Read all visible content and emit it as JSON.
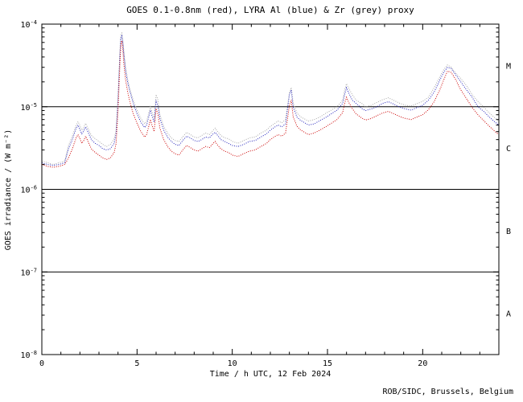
{
  "chart_data": {
    "type": "line",
    "title": "GOES 0.1-0.8nm (red), LYRA Al (blue) & Zr (grey) proxy",
    "xlabel": "Time / h UTC, 12 Feb 2024",
    "ylabel": "GOES irradiance / (W m⁻²)",
    "credit": "ROB/SIDC, Brussels, Belgium",
    "xlim": [
      0,
      24
    ],
    "ylim": [
      1e-08,
      0.0001
    ],
    "ylog": true,
    "grid": false,
    "legend_position": "none",
    "x_ticks": [
      0,
      5,
      10,
      15,
      20
    ],
    "x_minor_step": 1,
    "y_tick_exponents": [
      -8,
      -7,
      -6,
      -5,
      -4
    ],
    "class_lines": [
      1e-05,
      1e-06,
      1e-07
    ],
    "class_bands": [
      {
        "label": "M",
        "value": 3.16e-05
      },
      {
        "label": "C",
        "value": 3.16e-06
      },
      {
        "label": "B",
        "value": 3.16e-07
      },
      {
        "label": "A",
        "value": 3.16e-08
      }
    ],
    "x": [
      0,
      0.3,
      0.6,
      0.9,
      1.2,
      1.4,
      1.6,
      1.8,
      1.9,
      2.0,
      2.1,
      2.2,
      2.3,
      2.4,
      2.6,
      2.8,
      3.0,
      3.2,
      3.4,
      3.6,
      3.8,
      3.9,
      4.0,
      4.1,
      4.15,
      4.2,
      4.25,
      4.3,
      4.4,
      4.5,
      4.6,
      4.8,
      5.0,
      5.2,
      5.4,
      5.5,
      5.6,
      5.7,
      5.8,
      5.9,
      6.0,
      6.1,
      6.2,
      6.4,
      6.6,
      6.8,
      7.0,
      7.2,
      7.4,
      7.6,
      7.8,
      8.0,
      8.2,
      8.4,
      8.6,
      8.8,
      9.0,
      9.1,
      9.2,
      9.4,
      9.6,
      9.8,
      10.0,
      10.3,
      10.6,
      10.9,
      11.2,
      11.5,
      11.8,
      12.0,
      12.2,
      12.4,
      12.6,
      12.8,
      13.0,
      13.1,
      13.2,
      13.4,
      13.6,
      13.8,
      14.0,
      14.3,
      14.6,
      14.9,
      15.2,
      15.5,
      15.8,
      15.9,
      16.0,
      16.1,
      16.3,
      16.5,
      16.8,
      17.0,
      17.3,
      17.6,
      17.9,
      18.2,
      18.5,
      18.8,
      19.1,
      19.4,
      19.7,
      20.0,
      20.3,
      20.6,
      20.9,
      21.1,
      21.3,
      21.5,
      21.7,
      22.0,
      22.3,
      22.6,
      22.9,
      23.2,
      23.5,
      23.8,
      24.0
    ],
    "series": [
      {
        "id": "lyra-zr",
        "name": "LYRA Zr proxy",
        "color": "#a8a8a8",
        "values": [
          2.2e-06,
          2.1e-06,
          2e-06,
          2.1e-06,
          2.2e-06,
          3.4e-06,
          4.4e-06,
          6e-06,
          6.6e-06,
          5.9e-06,
          5.2e-06,
          5.6e-06,
          6.3e-06,
          5.6e-06,
          4.5e-06,
          4.1e-06,
          3.8e-06,
          3.5e-06,
          3.3e-06,
          3.5e-06,
          4.1e-06,
          5.2e-06,
          1.3e-05,
          4.6e-05,
          7.5e-05,
          7.8e-05,
          6.5e-05,
          4.9e-05,
          3e-05,
          2.2e-05,
          1.7e-05,
          1.2e-05,
          9.1e-06,
          7.2e-06,
          6.2e-06,
          6.7e-06,
          8.1e-06,
          1e-05,
          8.4e-06,
          7.2e-06,
          1.4e-05,
          1.2e-05,
          8e-06,
          5.8e-06,
          4.8e-06,
          4.2e-06,
          3.9e-06,
          3.8e-06,
          4.3e-06,
          4.9e-06,
          4.6e-06,
          4.3e-06,
          4.2e-06,
          4.5e-06,
          4.8e-06,
          4.6e-06,
          5.2e-06,
          5.5e-06,
          5.1e-06,
          4.5e-06,
          4.2e-06,
          4.1e-06,
          3.8e-06,
          3.6e-06,
          3.9e-06,
          4.2e-06,
          4.3e-06,
          4.8e-06,
          5.2e-06,
          5.8e-06,
          6.2e-06,
          6.7e-06,
          6.4e-06,
          7e-06,
          1.5e-05,
          1.7e-05,
          1.1e-05,
          8.4e-06,
          7.5e-06,
          7.1e-06,
          6.7e-06,
          7e-06,
          7.5e-06,
          8.3e-06,
          9.1e-06,
          1e-05,
          1.2e-05,
          1.6e-05,
          1.9e-05,
          1.7e-05,
          1.4e-05,
          1.2e-05,
          1.1e-05,
          1e-05,
          1.04e-05,
          1.13e-05,
          1.22e-05,
          1.28e-05,
          1.19e-05,
          1.1e-05,
          1.04e-05,
          1.02e-05,
          1.09e-05,
          1.16e-05,
          1.3e-05,
          1.7e-05,
          2.3e-05,
          2.8e-05,
          3.2e-05,
          3e-05,
          2.6e-05,
          2.2e-05,
          1.8e-05,
          1.4e-05,
          1.16e-05,
          9.9e-06,
          8.4e-06,
          7.3e-06,
          6.7e-06
        ]
      },
      {
        "id": "lyra-al",
        "name": "LYRA Al proxy",
        "color": "#2222bb",
        "values": [
          2.1e-06,
          2e-06,
          1.95e-06,
          2e-06,
          2.1e-06,
          3.1e-06,
          4e-06,
          5.5e-06,
          6e-06,
          5.3e-06,
          4.7e-06,
          5.1e-06,
          5.7e-06,
          5.1e-06,
          4e-06,
          3.6e-06,
          3.4e-06,
          3.1e-06,
          3e-06,
          3.1e-06,
          3.6e-06,
          4.7e-06,
          1.2e-05,
          4.2e-05,
          6.8e-05,
          7.2e-05,
          6e-05,
          4.4e-05,
          2.7e-05,
          2e-05,
          1.6e-05,
          1.1e-05,
          8.2e-06,
          6.5e-06,
          5.6e-06,
          6e-06,
          7.3e-06,
          9.1e-06,
          7.5e-06,
          6.5e-06,
          1.2e-05,
          1e-05,
          7.2e-06,
          5.2e-06,
          4.3e-06,
          3.8e-06,
          3.5e-06,
          3.4e-06,
          3.9e-06,
          4.4e-06,
          4.2e-06,
          3.9e-06,
          3.8e-06,
          4e-06,
          4.3e-06,
          4.2e-06,
          4.7e-06,
          4.9e-06,
          4.6e-06,
          4e-06,
          3.8e-06,
          3.6e-06,
          3.4e-06,
          3.3e-06,
          3.5e-06,
          3.8e-06,
          3.9e-06,
          4.3e-06,
          4.7e-06,
          5.2e-06,
          5.6e-06,
          6e-06,
          5.7e-06,
          6.2e-06,
          1.4e-05,
          1.6e-05,
          9.8e-06,
          7.5e-06,
          6.8e-06,
          6.4e-06,
          6e-06,
          6.2e-06,
          6.8e-06,
          7.4e-06,
          8.2e-06,
          9.1e-06,
          1.1e-05,
          1.4e-05,
          1.7e-05,
          1.5e-05,
          1.2e-05,
          1.1e-05,
          9.5e-06,
          9e-06,
          9.4e-06,
          1e-05,
          1.1e-05,
          1.15e-05,
          1.07e-05,
          9.9e-06,
          9.4e-06,
          9.1e-06,
          9.8e-06,
          1.04e-05,
          1.2e-05,
          1.5e-05,
          2.1e-05,
          2.6e-05,
          3e-05,
          2.9e-05,
          2.5e-05,
          2e-05,
          1.6e-05,
          1.3e-05,
          1e-05,
          8.8e-06,
          7.5e-06,
          6.5e-06,
          6e-06
        ]
      },
      {
        "id": "goes",
        "name": "GOES 0.1-0.8nm",
        "color": "#cc0000",
        "values": [
          2e-06,
          1.9e-06,
          1.85e-06,
          1.9e-06,
          2e-06,
          2.4e-06,
          3.1e-06,
          4.2e-06,
          4.6e-06,
          4.1e-06,
          3.6e-06,
          3.9e-06,
          4.4e-06,
          3.9e-06,
          3.1e-06,
          2.8e-06,
          2.6e-06,
          2.4e-06,
          2.3e-06,
          2.4e-06,
          2.8e-06,
          3.6e-06,
          9e-06,
          3.2e-05,
          5.5e-05,
          6.3e-05,
          5e-05,
          3.4e-05,
          2.1e-05,
          1.55e-05,
          1.2e-05,
          8.2e-06,
          6.3e-06,
          5e-06,
          4.3e-06,
          4.6e-06,
          5.6e-06,
          7e-06,
          5.8e-06,
          5e-06,
          9.5e-06,
          8e-06,
          5.5e-06,
          4e-06,
          3.3e-06,
          2.9e-06,
          2.7e-06,
          2.6e-06,
          3e-06,
          3.4e-06,
          3.2e-06,
          3e-06,
          2.9e-06,
          3.1e-06,
          3.3e-06,
          3.2e-06,
          3.6e-06,
          3.8e-06,
          3.5e-06,
          3.1e-06,
          2.9e-06,
          2.8e-06,
          2.6e-06,
          2.5e-06,
          2.7e-06,
          2.9e-06,
          3e-06,
          3.3e-06,
          3.6e-06,
          4e-06,
          4.3e-06,
          4.6e-06,
          4.4e-06,
          4.8e-06,
          1.05e-05,
          1.2e-05,
          7.5e-06,
          5.8e-06,
          5.2e-06,
          4.9e-06,
          4.6e-06,
          4.8e-06,
          5.2e-06,
          5.7e-06,
          6.3e-06,
          7e-06,
          8.5e-06,
          1.1e-05,
          1.3e-05,
          1.15e-05,
          9.5e-06,
          8.2e-06,
          7.3e-06,
          6.9e-06,
          7.2e-06,
          7.8e-06,
          8.4e-06,
          8.8e-06,
          8.2e-06,
          7.6e-06,
          7.2e-06,
          7e-06,
          7.5e-06,
          8e-06,
          9.2e-06,
          1.15e-05,
          1.6e-05,
          2.1e-05,
          2.7e-05,
          2.6e-05,
          2.2e-05,
          1.6e-05,
          1.25e-05,
          9.8e-06,
          8e-06,
          6.8e-06,
          5.8e-06,
          5e-06,
          4.6e-06
        ]
      }
    ]
  }
}
